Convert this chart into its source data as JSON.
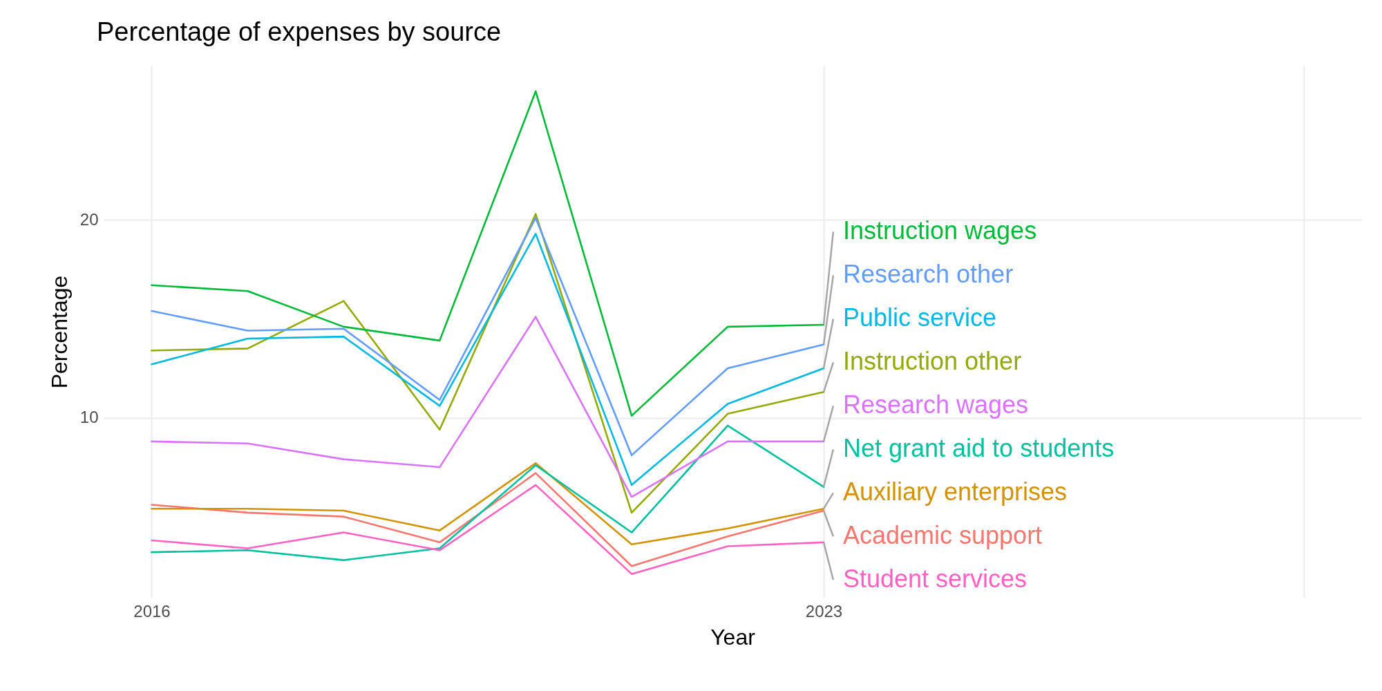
{
  "chart_data": {
    "type": "line",
    "title": "Percentage of expenses by source",
    "xlabel": "Year",
    "ylabel": "Percentage",
    "x": [
      2016,
      2017,
      2018,
      2019,
      2020,
      2021,
      2022,
      2023
    ],
    "xlim": [
      2015.5,
      2028.6
    ],
    "xticks": [
      2016,
      2023,
      {
        "value": 2028,
        "label": null
      }
    ],
    "ylim": [
      0.9,
      27.8
    ],
    "yticks": [
      10,
      20
    ],
    "grid": true,
    "legend": false,
    "series": [
      {
        "name": "Academic support",
        "color": "#f8766d",
        "values": [
          5.6,
          5.2,
          5.0,
          3.7,
          7.2,
          2.5,
          4.0,
          5.3
        ]
      },
      {
        "name": "Auxiliary enterprises",
        "color": "#d39200",
        "values": [
          5.4,
          5.4,
          5.3,
          4.3,
          7.7,
          3.6,
          4.4,
          5.4
        ]
      },
      {
        "name": "Instruction other",
        "color": "#93aa00",
        "values": [
          13.4,
          13.5,
          15.9,
          9.4,
          20.3,
          5.2,
          10.2,
          11.3
        ]
      },
      {
        "name": "Instruction wages",
        "color": "#00ba38",
        "values": [
          16.7,
          16.4,
          14.6,
          13.9,
          26.5,
          10.1,
          14.6,
          14.7
        ]
      },
      {
        "name": "Net grant aid to students",
        "color": "#00c19f",
        "values": [
          3.2,
          3.3,
          2.8,
          3.4,
          7.6,
          4.2,
          9.6,
          6.5
        ]
      },
      {
        "name": "Public service",
        "color": "#00b9e3",
        "values": [
          12.7,
          14.0,
          14.1,
          10.6,
          19.3,
          6.6,
          10.7,
          12.5
        ]
      },
      {
        "name": "Research other",
        "color": "#619cff",
        "values": [
          15.4,
          14.4,
          14.5,
          10.9,
          20.1,
          8.1,
          12.5,
          13.7
        ]
      },
      {
        "name": "Research wages",
        "color": "#db72fb",
        "values": [
          8.8,
          8.7,
          7.9,
          7.5,
          15.1,
          6.0,
          8.8,
          8.8
        ]
      },
      {
        "name": "Student services",
        "color": "#ff61c3",
        "values": [
          3.8,
          3.4,
          4.2,
          3.3,
          6.6,
          2.1,
          3.5,
          3.7
        ]
      }
    ]
  }
}
